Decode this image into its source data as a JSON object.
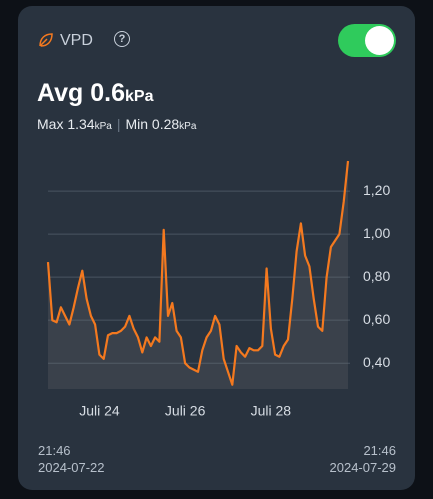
{
  "header": {
    "title": "VPD"
  },
  "stats": {
    "avg_label": "Avg",
    "avg": 0.6,
    "max_label": "Max",
    "max": 1.34,
    "min_label": "Min",
    "min": 0.28,
    "unit": "kPa"
  },
  "footer": {
    "start_time": "21:46",
    "start_date": "2024-07-22",
    "end_time": "21:46",
    "end_date": "2024-07-29"
  },
  "chart_data": {
    "type": "line",
    "x": [
      0,
      0.1,
      0.2,
      0.3,
      0.4,
      0.5,
      0.6,
      0.7,
      0.8,
      0.9,
      1.0,
      1.1,
      1.2,
      1.3,
      1.4,
      1.5,
      1.6,
      1.7,
      1.8,
      1.9,
      2.0,
      2.1,
      2.2,
      2.3,
      2.4,
      2.5,
      2.6,
      2.7,
      2.8,
      2.9,
      3.0,
      3.1,
      3.2,
      3.3,
      3.4,
      3.5,
      3.6,
      3.7,
      3.8,
      3.9,
      4.0,
      4.1,
      4.2,
      4.3,
      4.4,
      4.5,
      4.6,
      4.7,
      4.8,
      4.9,
      5.0,
      5.1,
      5.2,
      5.3,
      5.4,
      5.5,
      5.6,
      5.7,
      5.8,
      5.9,
      6.0,
      6.1,
      6.2,
      6.3,
      6.4,
      6.5,
      6.6,
      6.7,
      6.8,
      6.9,
      7.0
    ],
    "series": [
      {
        "name": "VPD",
        "color": "#f4791f",
        "values": [
          0.87,
          0.6,
          0.59,
          0.66,
          0.62,
          0.58,
          0.66,
          0.75,
          0.83,
          0.7,
          0.62,
          0.58,
          0.44,
          0.42,
          0.53,
          0.54,
          0.54,
          0.55,
          0.57,
          0.62,
          0.56,
          0.52,
          0.45,
          0.52,
          0.48,
          0.52,
          0.5,
          1.02,
          0.62,
          0.68,
          0.55,
          0.52,
          0.4,
          0.38,
          0.37,
          0.36,
          0.46,
          0.52,
          0.55,
          0.62,
          0.58,
          0.42,
          0.36,
          0.3,
          0.48,
          0.45,
          0.43,
          0.47,
          0.46,
          0.46,
          0.48,
          0.84,
          0.56,
          0.44,
          0.43,
          0.48,
          0.51,
          0.7,
          0.92,
          1.05,
          0.9,
          0.85,
          0.7,
          0.57,
          0.55,
          0.8,
          0.94,
          0.97,
          1.0,
          1.15,
          1.34
        ]
      }
    ],
    "xlim": [
      0,
      7
    ],
    "xticks": [
      {
        "value": 1.2,
        "label": "Juli 24"
      },
      {
        "value": 3.2,
        "label": "Juli 26"
      },
      {
        "value": 5.2,
        "label": "Juli 28"
      }
    ],
    "ylim": [
      0.28,
      1.34
    ],
    "yticks": [
      {
        "value": 0.4,
        "label": "0,40"
      },
      {
        "value": 0.6,
        "label": "0,60"
      },
      {
        "value": 0.8,
        "label": "0,80"
      },
      {
        "value": 1.0,
        "label": "1,00"
      },
      {
        "value": 1.2,
        "label": "1,20"
      }
    ],
    "grid": true
  }
}
